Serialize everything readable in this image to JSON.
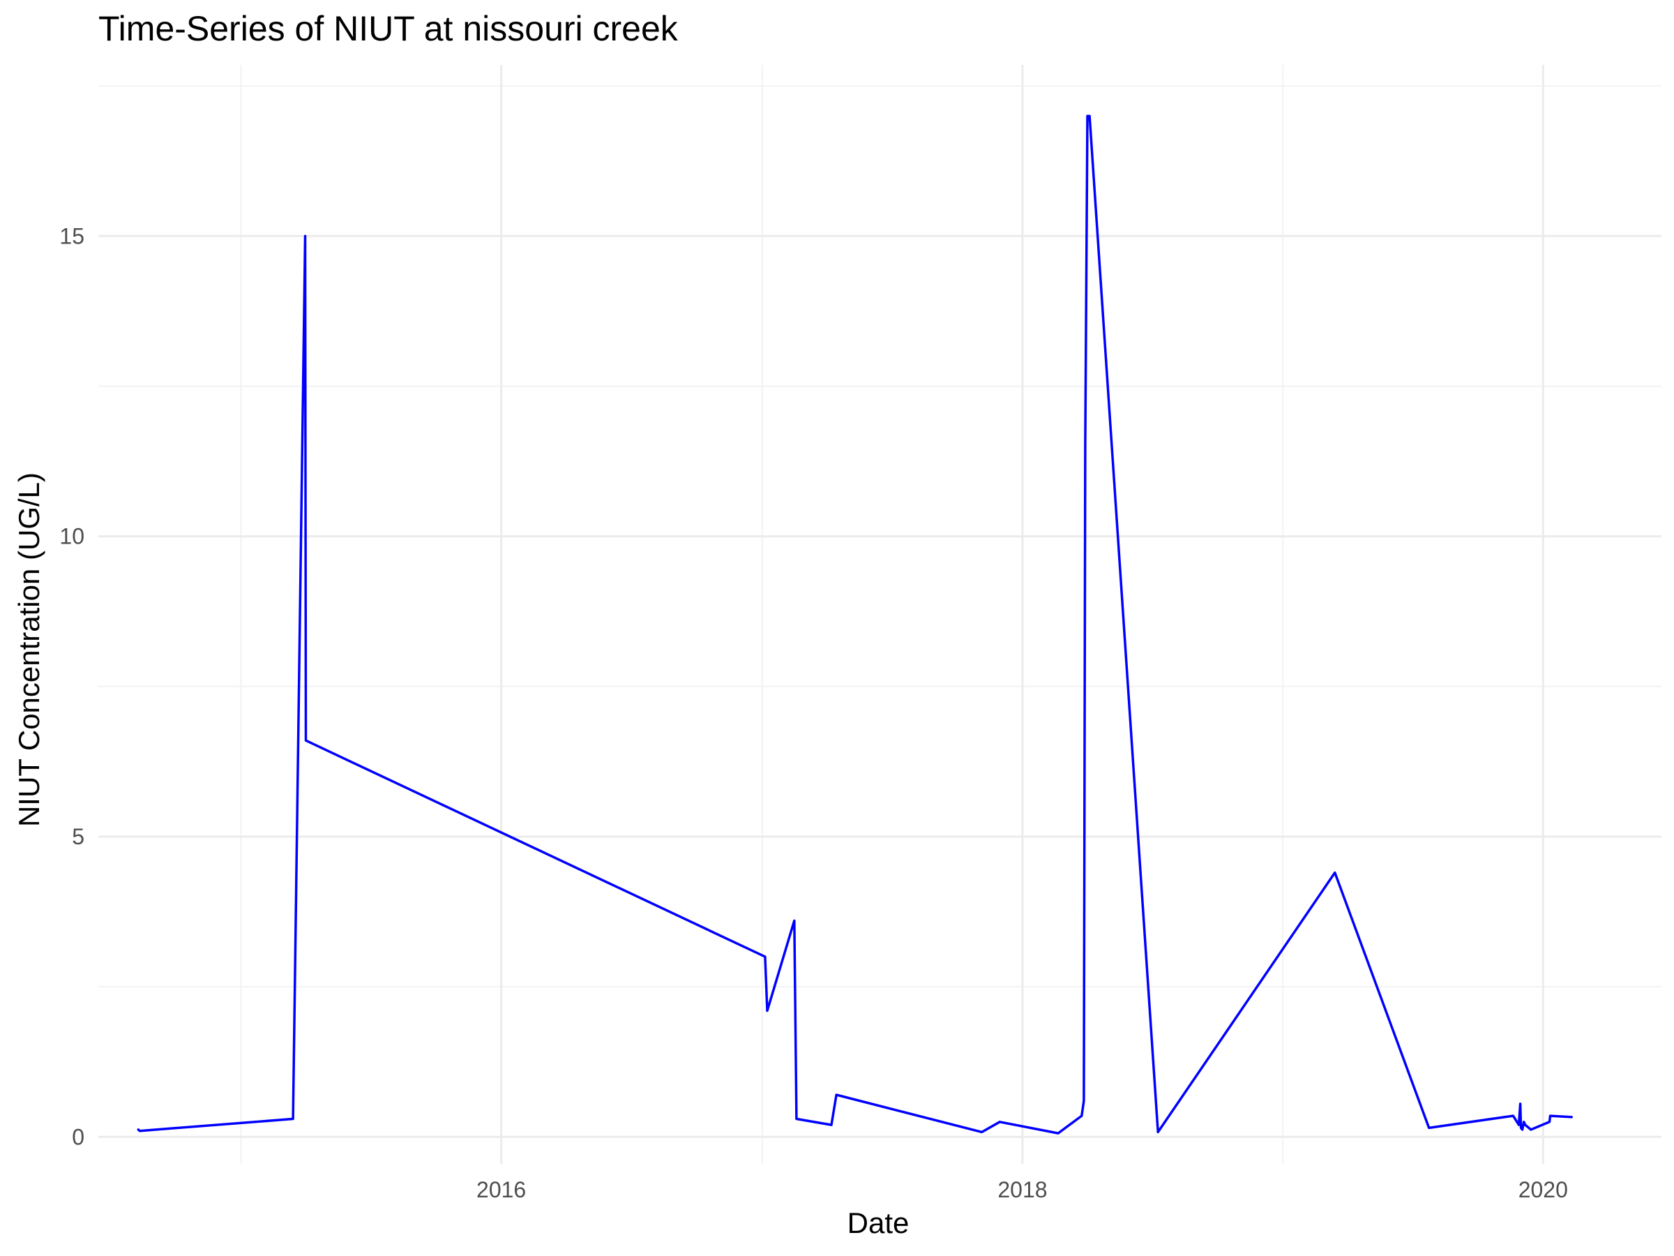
{
  "chart_data": {
    "type": "line",
    "title": "Time-Series of NIUT at nissouri creek",
    "xlabel": "Date",
    "ylabel": "NIUT Concentration (UG/L)",
    "x_type": "date",
    "xlim": [
      "2014-06-15",
      "2020-06-15"
    ],
    "ylim": [
      -0.45,
      17.85
    ],
    "x_ticks": [
      {
        "date": "2016-01-01",
        "label": "2016"
      },
      {
        "date": "2018-01-01",
        "label": "2018"
      },
      {
        "date": "2020-01-01",
        "label": "2020"
      }
    ],
    "x_minor_ticks": [
      "2015-01-01",
      "2017-01-01",
      "2019-01-01"
    ],
    "y_ticks": [
      0,
      5,
      10,
      15
    ],
    "y_minor_ticks": [
      2.5,
      7.5,
      12.5,
      17.5
    ],
    "grid": true,
    "legend": "none",
    "line_color": "#0000ff",
    "series": [
      {
        "x": [
          "2014-08-10",
          "2014-08-12",
          "2015-03-15",
          "2015-04-01",
          "2015-04-02",
          "2017-01-05",
          "2017-01-08",
          "2017-02-15",
          "2017-02-18",
          "2017-04-08",
          "2017-04-15",
          "2017-11-05",
          "2017-11-30",
          "2018-02-20",
          "2018-03-25",
          "2018-03-28",
          "2018-03-30",
          "2018-04-02",
          "2018-04-05",
          "2018-07-10",
          "2019-03-15",
          "2019-07-25",
          "2019-11-20",
          "2019-11-28",
          "2019-11-30",
          "2019-12-01",
          "2019-12-03",
          "2019-12-05",
          "2019-12-07",
          "2019-12-15",
          "2020-01-10",
          "2020-01-11",
          "2020-02-10"
        ],
        "y": [
          0.12,
          0.1,
          0.3,
          15.0,
          6.6,
          3.0,
          2.1,
          3.6,
          0.3,
          0.2,
          0.7,
          0.08,
          0.25,
          0.06,
          0.35,
          0.6,
          11.5,
          17.0,
          17.0,
          0.08,
          4.4,
          0.15,
          0.35,
          0.2,
          0.55,
          0.15,
          0.12,
          0.25,
          0.2,
          0.12,
          0.25,
          0.35,
          0.33
        ]
      }
    ]
  }
}
